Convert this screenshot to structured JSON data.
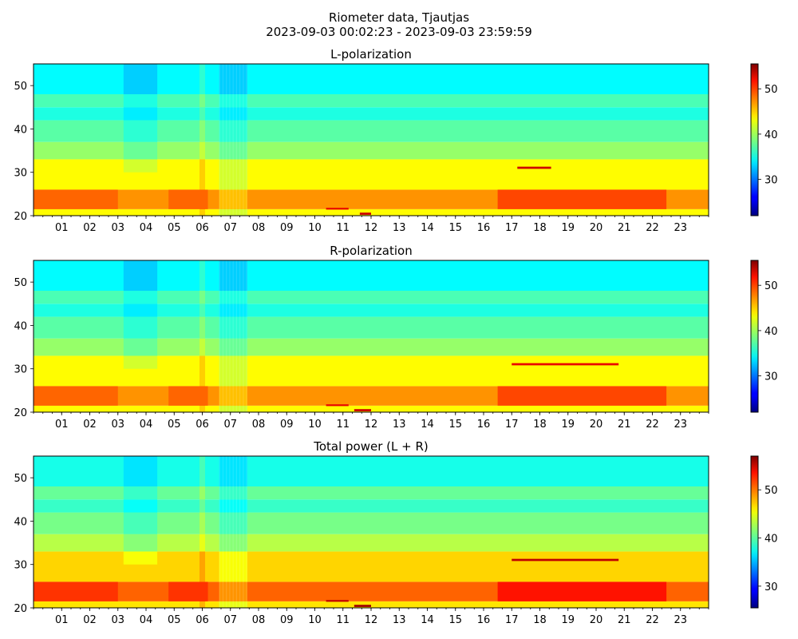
{
  "figure": {
    "title_line1": "Riometer data, Tjautjas",
    "title_line2": "2023-09-03 00:02:23 - 2023-09-03 23:59:59"
  },
  "colormap": "jet",
  "chart_data": [
    {
      "type": "heatmap",
      "title": "L-polarization",
      "xlabel": "",
      "ylabel": "",
      "xlim": [
        0,
        24
      ],
      "ylim": [
        20,
        55
      ],
      "x_ticks": [
        "01",
        "02",
        "03",
        "04",
        "05",
        "06",
        "07",
        "08",
        "09",
        "10",
        "11",
        "12",
        "13",
        "14",
        "15",
        "16",
        "17",
        "18",
        "19",
        "20",
        "21",
        "22",
        "23"
      ],
      "y_ticks": [
        20,
        30,
        40,
        50
      ],
      "colorbar": {
        "range": [
          22,
          55.5
        ],
        "ticks": [
          30,
          40,
          50
        ]
      },
      "bands": [
        {
          "y": [
            20,
            21.5
          ],
          "value": 43
        },
        {
          "y": [
            21.5,
            26
          ],
          "value": 46.5
        },
        {
          "y": [
            26,
            33
          ],
          "value": 43
        },
        {
          "y": [
            33,
            37
          ],
          "value": 39.5
        },
        {
          "y": [
            37,
            42
          ],
          "value": 37.5
        },
        {
          "y": [
            42,
            45
          ],
          "value": 35.5
        },
        {
          "y": [
            45,
            48
          ],
          "value": 37
        },
        {
          "y": [
            48,
            55
          ],
          "value": 34.5
        }
      ],
      "disturbances": [
        {
          "x": [
            3.2,
            4.4
          ],
          "y": [
            30,
            55
          ],
          "delta": -1.5
        },
        {
          "x": [
            5.9,
            6.1
          ],
          "y": [
            20,
            55
          ],
          "delta": 1.5
        },
        {
          "x": [
            6.6,
            7.6
          ],
          "y": [
            20,
            55
          ],
          "delta": -1.5
        },
        {
          "x": [
            16.5,
            22.5
          ],
          "y": [
            21.5,
            26
          ],
          "delta": 2.5
        },
        {
          "x": [
            0,
            3.0
          ],
          "y": [
            21.5,
            26
          ],
          "delta": 1.5
        },
        {
          "x": [
            4.8,
            6.2
          ],
          "y": [
            21.5,
            26
          ],
          "delta": 1.5
        }
      ],
      "spikes": [
        {
          "x": [
            17.2,
            18.4
          ],
          "y": [
            30.8,
            31.3
          ],
          "value": 53
        },
        {
          "x": [
            10.4,
            11.2
          ],
          "y": [
            21.4,
            21.8
          ],
          "value": 52
        },
        {
          "x": [
            11.6,
            12.0
          ],
          "y": [
            20.2,
            20.7
          ],
          "value": 53
        }
      ]
    },
    {
      "type": "heatmap",
      "title": "R-polarization",
      "xlabel": "",
      "ylabel": "",
      "xlim": [
        0,
        24
      ],
      "ylim": [
        20,
        55
      ],
      "x_ticks": [
        "01",
        "02",
        "03",
        "04",
        "05",
        "06",
        "07",
        "08",
        "09",
        "10",
        "11",
        "12",
        "13",
        "14",
        "15",
        "16",
        "17",
        "18",
        "19",
        "20",
        "21",
        "22",
        "23"
      ],
      "y_ticks": [
        20,
        30,
        40,
        50
      ],
      "colorbar": {
        "range": [
          22,
          55.5
        ],
        "ticks": [
          30,
          40,
          50
        ]
      },
      "bands": [
        {
          "y": [
            20,
            21.5
          ],
          "value": 43
        },
        {
          "y": [
            21.5,
            26
          ],
          "value": 46.5
        },
        {
          "y": [
            26,
            33
          ],
          "value": 43
        },
        {
          "y": [
            33,
            37
          ],
          "value": 39.5
        },
        {
          "y": [
            37,
            42
          ],
          "value": 37.5
        },
        {
          "y": [
            42,
            45
          ],
          "value": 35.5
        },
        {
          "y": [
            45,
            48
          ],
          "value": 37
        },
        {
          "y": [
            48,
            55
          ],
          "value": 34.5
        }
      ],
      "disturbances": [
        {
          "x": [
            3.2,
            4.4
          ],
          "y": [
            30,
            55
          ],
          "delta": -1.5
        },
        {
          "x": [
            5.9,
            6.1
          ],
          "y": [
            20,
            55
          ],
          "delta": 1.5
        },
        {
          "x": [
            6.6,
            7.6
          ],
          "y": [
            20,
            55
          ],
          "delta": -1.5
        },
        {
          "x": [
            16.5,
            22.5
          ],
          "y": [
            21.5,
            26
          ],
          "delta": 2.5
        },
        {
          "x": [
            0,
            3.0
          ],
          "y": [
            21.5,
            26
          ],
          "delta": 1.5
        },
        {
          "x": [
            4.8,
            6.2
          ],
          "y": [
            21.5,
            26
          ],
          "delta": 1.5
        }
      ],
      "spikes": [
        {
          "x": [
            17.0,
            20.8
          ],
          "y": [
            30.8,
            31.3
          ],
          "value": 52
        },
        {
          "x": [
            10.4,
            11.2
          ],
          "y": [
            21.4,
            21.8
          ],
          "value": 52
        },
        {
          "x": [
            11.4,
            12.0
          ],
          "y": [
            20.2,
            20.7
          ],
          "value": 53
        }
      ]
    },
    {
      "type": "heatmap",
      "title": "Total power (L + R)",
      "xlabel": "",
      "ylabel": "",
      "xlim": [
        0,
        24
      ],
      "ylim": [
        20,
        55
      ],
      "x_ticks": [
        "01",
        "02",
        "03",
        "04",
        "05",
        "06",
        "07",
        "08",
        "09",
        "10",
        "11",
        "12",
        "13",
        "14",
        "15",
        "16",
        "17",
        "18",
        "19",
        "20",
        "21",
        "22",
        "23"
      ],
      "y_ticks": [
        20,
        30,
        40,
        50
      ],
      "colorbar": {
        "range": [
          25.5,
          57
        ],
        "ticks": [
          30,
          40,
          50
        ]
      },
      "bands": [
        {
          "y": [
            20,
            21.5
          ],
          "value": 46
        },
        {
          "y": [
            21.5,
            26
          ],
          "value": 50
        },
        {
          "y": [
            26,
            33
          ],
          "value": 46.5
        },
        {
          "y": [
            33,
            37
          ],
          "value": 43
        },
        {
          "y": [
            37,
            42
          ],
          "value": 41
        },
        {
          "y": [
            42,
            45
          ],
          "value": 39
        },
        {
          "y": [
            45,
            48
          ],
          "value": 40.5
        },
        {
          "y": [
            48,
            55
          ],
          "value": 38
        }
      ],
      "disturbances": [
        {
          "x": [
            3.2,
            4.4
          ],
          "y": [
            30,
            55
          ],
          "delta": -1.5
        },
        {
          "x": [
            5.9,
            6.1
          ],
          "y": [
            20,
            55
          ],
          "delta": 1.5
        },
        {
          "x": [
            6.6,
            7.6
          ],
          "y": [
            20,
            55
          ],
          "delta": -1.5
        },
        {
          "x": [
            16.5,
            22.5
          ],
          "y": [
            21.5,
            26
          ],
          "delta": 2.5
        },
        {
          "x": [
            0,
            3.0
          ],
          "y": [
            21.5,
            26
          ],
          "delta": 1.5
        },
        {
          "x": [
            4.8,
            6.2
          ],
          "y": [
            21.5,
            26
          ],
          "delta": 1.5
        }
      ],
      "spikes": [
        {
          "x": [
            17.0,
            20.8
          ],
          "y": [
            30.8,
            31.3
          ],
          "value": 55
        },
        {
          "x": [
            10.4,
            11.2
          ],
          "y": [
            21.4,
            21.8
          ],
          "value": 55
        },
        {
          "x": [
            11.4,
            12.0
          ],
          "y": [
            20.2,
            20.7
          ],
          "value": 56
        }
      ]
    }
  ]
}
